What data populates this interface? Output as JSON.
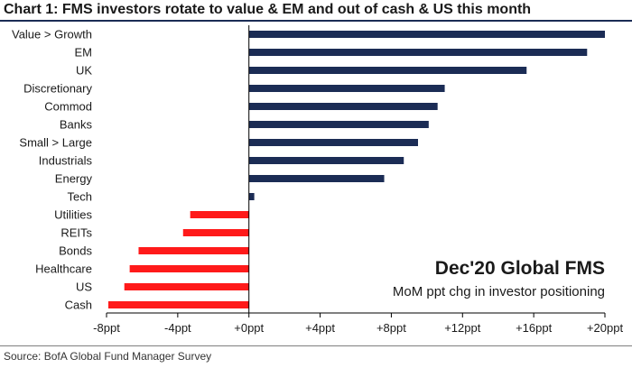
{
  "header": {
    "title": "Chart 1: FMS investors rotate to value & EM and out of cash & US this month"
  },
  "footer": {
    "source": "Source:  BofA Global Fund Manager Survey"
  },
  "colors": {
    "positive_bar": "#1b2c55",
    "negative_bar": "#ff1a1a",
    "rule": "#1b2c55"
  },
  "chart_data": {
    "type": "bar",
    "orientation": "horizontal",
    "categories": [
      "Value > Growth",
      "EM",
      "UK",
      "Discretionary",
      "Commod",
      "Banks",
      "Small > Large",
      "Industrials",
      "Energy",
      "Tech",
      "Utilities",
      "REITs",
      "Bonds",
      "Healthcare",
      "US",
      "Cash"
    ],
    "values": [
      20.0,
      19.0,
      15.6,
      11.0,
      10.6,
      10.1,
      9.5,
      8.7,
      7.6,
      0.3,
      -3.3,
      -3.7,
      -6.2,
      -6.7,
      -7.0,
      -7.9
    ],
    "xlim": [
      -8,
      20
    ],
    "xticks": [
      -8,
      -4,
      0,
      4,
      8,
      12,
      16,
      20
    ],
    "xtick_labels": [
      "-8ppt",
      "-4ppt",
      "+0ppt",
      "+4ppt",
      "+8ppt",
      "+12ppt",
      "+16ppt",
      "+20ppt"
    ],
    "xlabel": "",
    "ylabel": "",
    "grid": false,
    "annotation": {
      "main": "Dec'20 Global FMS",
      "sub": "MoM ppt chg in investor positioning"
    }
  }
}
